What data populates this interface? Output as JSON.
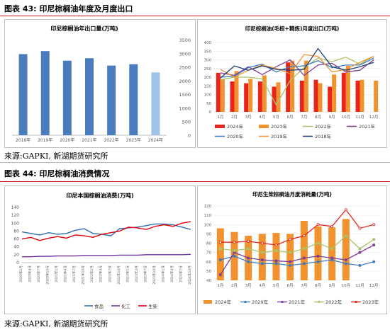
{
  "figure43": {
    "label": "图表 43:",
    "title": "印尼棕榈油年度及月度出口",
    "source": "来源:GAPKI, 新湖期货研究所"
  },
  "figure44": {
    "label": "图表 44:",
    "title": "印尼棕榈油消费情况",
    "source": "来源:GAPKI, 新湖期货研究所"
  },
  "colors": {
    "rule": "#c41e1e",
    "bar_blue": "#4a7bbd",
    "bar_light": "#9dc3e6",
    "red": "#e8241d",
    "orange": "#f0922e",
    "gray_green": "#a9c46a",
    "purple": "#7d3f98",
    "blue": "#3e7cc2",
    "dark_navy": "#243f74",
    "food_blue": "#2f6db3",
    "chem_purple": "#7030a0",
    "bio_red": "#e3000b"
  },
  "chart_data": [
    {
      "type": "bar",
      "title": "印尼棕榈油年出口量(万吨)",
      "categories": [
        "2018年",
        "2019年",
        "2020年",
        "2021年",
        "2022年",
        "2023年",
        "2024年"
      ],
      "values": [
        2970,
        3080,
        2730,
        2820,
        2550,
        2600,
        2300
      ],
      "ylim": [
        0,
        3500
      ],
      "yticks": [
        0,
        500,
        1000,
        1500,
        2000,
        2500,
        3000,
        3500
      ],
      "grid": false,
      "legend": "none"
    },
    {
      "type": "bar+line",
      "title": "印尼棕榈油(毛棕+精炼)月度出口(万吨)",
      "categories": [
        "1月",
        "2月",
        "3月",
        "4月",
        "5月",
        "6月",
        "7月",
        "8月",
        "9月",
        "10月",
        "11月",
        "12月"
      ],
      "ylim": [
        0,
        400
      ],
      "yticks": [
        0,
        50,
        100,
        150,
        200,
        250,
        300,
        350,
        400
      ],
      "legend": "bottom",
      "bar_series": [
        {
          "name": "2024年",
          "values": [
            225,
            175,
            165,
            175,
            145,
            285,
            180,
            185,
            145,
            225,
            180,
            null
          ]
        },
        {
          "name": "2023年",
          "values": [
            190,
            235,
            190,
            210,
            170,
            295,
            295,
            165,
            215,
            265,
            185,
            180
          ]
        }
      ],
      "line_series": [
        {
          "name": "2022年",
          "values": [
            185,
            200,
            200,
            190,
            40,
            180,
            255,
            310,
            290,
            315,
            275,
            320
          ]
        },
        {
          "name": "2021年",
          "values": [
            225,
            210,
            260,
            215,
            260,
            300,
            210,
            270,
            280,
            230,
            240,
            300
          ]
        },
        {
          "name": "2020年",
          "values": [
            200,
            205,
            255,
            275,
            230,
            260,
            265,
            295,
            255,
            270,
            270,
            310
          ]
        },
        {
          "name": "2019年",
          "values": [
            245,
            200,
            240,
            270,
            250,
            220,
            330,
            320,
            230,
            245,
            285,
            320
          ]
        },
        {
          "name": "2018年",
          "values": [
            195,
            265,
            240,
            265,
            245,
            240,
            245,
            365,
            260,
            240,
            260,
            285
          ]
        }
      ]
    },
    {
      "type": "line",
      "title": "印尼本国棕榈油消费(万吨)",
      "ylim": [
        0,
        140
      ],
      "yticks": [
        0,
        20,
        40,
        60,
        80,
        100,
        120,
        140
      ],
      "x": [
        "2020年1月",
        "2020年4月",
        "2020年7月",
        "2020年10月",
        "2021年1月",
        "2021年4月",
        "2021年7月",
        "2021年10月",
        "2022年1月",
        "2022年4月",
        "2022年7月",
        "2022年10月",
        "2023年1月",
        "2023年4月",
        "2023年7月",
        "2023年10月",
        "2024年1月",
        "2024年4月",
        "2024年7月",
        "2024年10月"
      ],
      "legend": "bottom",
      "series": [
        {
          "name": "食品",
          "values": [
            78,
            74,
            70,
            76,
            72,
            74,
            82,
            86,
            74,
            72,
            68,
            86,
            88,
            90,
            94,
            98,
            98,
            96,
            90,
            84
          ]
        },
        {
          "name": "化工",
          "values": [
            15,
            15,
            16,
            16,
            17,
            17,
            17,
            18,
            18,
            18,
            18,
            19,
            19,
            19,
            20,
            20,
            20,
            20,
            20,
            21
          ]
        },
        {
          "name": "生柴",
          "values": [
            60,
            64,
            56,
            62,
            66,
            62,
            70,
            68,
            64,
            72,
            76,
            80,
            90,
            88,
            84,
            92,
            96,
            92,
            100,
            104
          ]
        }
      ]
    },
    {
      "type": "bar+line",
      "title": "印尼生柴棕榈油月度消耗量(万吨)",
      "categories": [
        "1月",
        "2月",
        "3月",
        "4月",
        "5月",
        "6月",
        "7月",
        "8月",
        "9月",
        "10月",
        "11月",
        "12月"
      ],
      "ylim": [
        40,
        120
      ],
      "yticks": [
        40,
        50,
        60,
        70,
        80,
        90,
        100,
        110,
        120
      ],
      "legend": "bottom",
      "bar_series": [
        {
          "name": "2024年",
          "values": [
            96,
            92,
            88,
            90,
            91,
            90,
            104,
            98,
            97,
            106,
            null,
            null
          ]
        }
      ],
      "line_series": [
        {
          "name": "2020年",
          "values": [
            62,
            66,
            60,
            58,
            58,
            56,
            58,
            60,
            62,
            58,
            56,
            60
          ]
        },
        {
          "name": "2021年",
          "values": [
            46,
            70,
            64,
            62,
            61,
            60,
            64,
            66,
            64,
            62,
            70,
            78
          ]
        },
        {
          "name": "2022年",
          "values": [
            74,
            72,
            74,
            70,
            72,
            70,
            74,
            80,
            74,
            88,
            74,
            84
          ]
        },
        {
          "name": "2023年",
          "values": [
            81,
            81,
            82,
            80,
            78,
            84,
            88,
            100,
            98,
            116,
            96,
            100
          ]
        }
      ]
    }
  ]
}
